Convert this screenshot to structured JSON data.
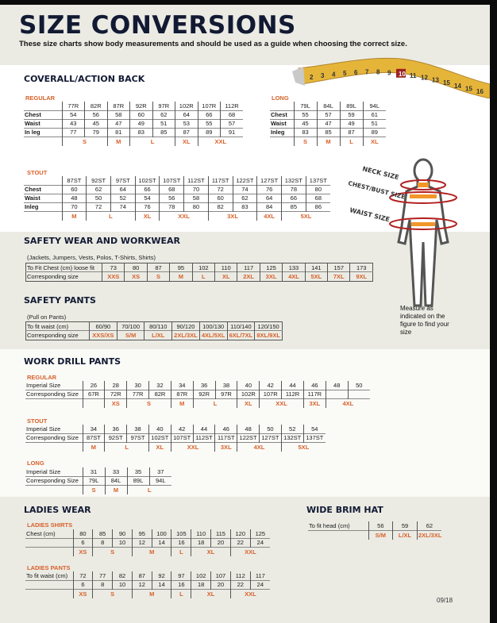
{
  "header": {
    "title": "SIZE CONVERSIONS",
    "subtitle": "These size charts show body measurements and should be used as a guide when choosing the correct size."
  },
  "tape": {
    "numbers": [
      "2",
      "3",
      "4",
      "5",
      "6",
      "7",
      "8",
      "9",
      "10",
      "11",
      "12",
      "13",
      "15",
      "14",
      "15",
      "16"
    ],
    "highlight": "10"
  },
  "colors": {
    "accent": "#d8612a",
    "navy": "#121a33",
    "beige": "#ebebe4",
    "arrow": "#b21f1f"
  },
  "coverall": {
    "title": "COVERALL/ACTION BACK",
    "regular": {
      "title": "REGULAR",
      "rows": [
        [
          "",
          "77R",
          "82R",
          "87R",
          "92R",
          "97R",
          "102R",
          "107R",
          "112R"
        ],
        [
          "Chest",
          "54",
          "56",
          "58",
          "60",
          "62",
          "64",
          "66",
          "68"
        ],
        [
          "Waist",
          "43",
          "45",
          "47",
          "49",
          "51",
          "53",
          "55",
          "57"
        ],
        [
          "In leg",
          "77",
          "79",
          "81",
          "83",
          "85",
          "87",
          "89",
          "91"
        ]
      ],
      "sizes": [
        {
          "s": "S",
          "span": 2
        },
        {
          "s": "M",
          "span": 1
        },
        {
          "s": "L",
          "span": 2
        },
        {
          "s": "XL",
          "span": 1
        },
        {
          "s": "XXL",
          "span": 2
        }
      ]
    },
    "long": {
      "title": "LONG",
      "rows": [
        [
          "",
          "79L",
          "84L",
          "89L",
          "94L"
        ],
        [
          "Chest",
          "55",
          "57",
          "59",
          "61"
        ],
        [
          "Waist",
          "45",
          "47",
          "49",
          "51"
        ],
        [
          "Inleg",
          "83",
          "85",
          "87",
          "89"
        ]
      ],
      "sizes": [
        {
          "s": "S",
          "span": 1
        },
        {
          "s": "M",
          "span": 1
        },
        {
          "s": "L",
          "span": 1
        },
        {
          "s": "XL",
          "span": 1
        }
      ]
    },
    "stout": {
      "title": "STOUT",
      "rows": [
        [
          "",
          "87ST",
          "92ST",
          "97ST",
          "102ST",
          "107ST",
          "112ST",
          "117ST",
          "122ST",
          "127ST",
          "132ST",
          "137ST"
        ],
        [
          "Chest",
          "60",
          "62",
          "64",
          "66",
          "68",
          "70",
          "72",
          "74",
          "76",
          "78",
          "80"
        ],
        [
          "Waist",
          "48",
          "50",
          "52",
          "54",
          "56",
          "58",
          "60",
          "62",
          "64",
          "66",
          "68"
        ],
        [
          "Inleg",
          "70",
          "72",
          "74",
          "76",
          "78",
          "80",
          "82",
          "83",
          "84",
          "85",
          "86"
        ]
      ],
      "sizes": [
        {
          "s": "M",
          "span": 1
        },
        {
          "s": "L",
          "span": 2
        },
        {
          "s": "XL",
          "span": 1
        },
        {
          "s": "XXL",
          "span": 2
        },
        {
          "s": "3XL",
          "span": 2
        },
        {
          "s": "4XL",
          "span": 1
        },
        {
          "s": "5XL",
          "span": 2
        }
      ]
    }
  },
  "figure": {
    "neck": "NECK SIZE",
    "chest": "CHEST/BUST SIZE",
    "waist": "WAIST SIZE",
    "note": "Measure as indicated on the figure to find your size"
  },
  "safety_wear": {
    "title": "SAFETY WEAR AND WORKWEAR",
    "note": "(Jackets, Jumpers, Vests, Polos, T-Shirts, Shirts)",
    "rows": [
      [
        "To Fit Chest (cm) loose fit",
        "73",
        "80",
        "87",
        "95",
        "102",
        "110",
        "117",
        "125",
        "133",
        "141",
        "157",
        "173"
      ]
    ],
    "sizes_label": "Corresponding size",
    "sizes": [
      {
        "s": "XXS",
        "span": 1
      },
      {
        "s": "XS",
        "span": 1
      },
      {
        "s": "S",
        "span": 1
      },
      {
        "s": "M",
        "span": 1
      },
      {
        "s": "L",
        "span": 1
      },
      {
        "s": "XL",
        "span": 1
      },
      {
        "s": "2XL",
        "span": 1
      },
      {
        "s": "3XL",
        "span": 1
      },
      {
        "s": "4XL",
        "span": 1
      },
      {
        "s": "5XL",
        "span": 1
      },
      {
        "s": "7XL",
        "span": 1
      },
      {
        "s": "9XL",
        "span": 1
      }
    ]
  },
  "safety_pants": {
    "title": "SAFETY PANTS",
    "note": "(Pull on Pants)",
    "rows": [
      [
        "To fit waist (cm)",
        "60/90",
        "70/100",
        "80/110",
        "90/120",
        "100/130",
        "110/140",
        "120/150"
      ]
    ],
    "sizes_label": "Corresponding size",
    "sizes": [
      {
        "s": "XXS/XS",
        "span": 1
      },
      {
        "s": "S/M",
        "span": 1
      },
      {
        "s": "L/XL",
        "span": 1
      },
      {
        "s": "2XL/3XL",
        "span": 1
      },
      {
        "s": "4XL/5XL",
        "span": 1
      },
      {
        "s": "6XL/7XL",
        "span": 1
      },
      {
        "s": "8XL/9XL",
        "span": 1
      }
    ]
  },
  "work_drill": {
    "title": "WORK DRILL PANTS",
    "regular": {
      "title": "REGULAR",
      "rows": [
        [
          "Imperial Size",
          "26",
          "28",
          "30",
          "32",
          "34",
          "36",
          "38",
          "40",
          "42",
          "44",
          "46",
          "48",
          "50"
        ],
        [
          "Corresponding Size",
          "67R",
          "72R",
          "77R",
          "82R",
          "87R",
          "92R",
          "97R",
          "102R",
          "107R",
          "112R",
          "117R",
          "",
          ""
        ]
      ],
      "sizes": [
        {
          "s": "",
          "span": 1
        },
        {
          "s": "XS",
          "span": 1
        },
        {
          "s": "S",
          "span": 2
        },
        {
          "s": "M",
          "span": 1
        },
        {
          "s": "L",
          "span": 2
        },
        {
          "s": "XL",
          "span": 1
        },
        {
          "s": "XXL",
          "span": 2
        },
        {
          "s": "3XL",
          "span": 1
        },
        {
          "s": "4XL",
          "span": 2
        }
      ]
    },
    "stout": {
      "title": "STOUT",
      "rows": [
        [
          "Imperial Size",
          "34",
          "36",
          "38",
          "40",
          "42",
          "44",
          "46",
          "48",
          "50",
          "52",
          "54"
        ],
        [
          "Corresponding Size",
          "87ST",
          "92ST",
          "97ST",
          "102ST",
          "107ST",
          "112ST",
          "117ST",
          "122ST",
          "127ST",
          "132ST",
          "137ST"
        ]
      ],
      "sizes": [
        {
          "s": "M",
          "span": 1
        },
        {
          "s": "L",
          "span": 2
        },
        {
          "s": "XL",
          "span": 1
        },
        {
          "s": "XXL",
          "span": 2
        },
        {
          "s": "3XL",
          "span": 1
        },
        {
          "s": "4XL",
          "span": 2
        },
        {
          "s": "5XL",
          "span": 2
        }
      ]
    },
    "long": {
      "title": "LONG",
      "rows": [
        [
          "Imperial Size",
          "31",
          "33",
          "35",
          "37"
        ],
        [
          "Corresponding Size",
          "79L",
          "84L",
          "89L",
          "94L"
        ]
      ],
      "sizes": [
        {
          "s": "S",
          "span": 1
        },
        {
          "s": "M",
          "span": 1
        },
        {
          "s": "L",
          "span": 2
        }
      ]
    }
  },
  "ladies": {
    "title": "LADIES WEAR",
    "shirts": {
      "title": "LADIES SHIRTS",
      "rows": [
        [
          "Chest (cm)",
          "80",
          "85",
          "90",
          "95",
          "100",
          "105",
          "110",
          "115",
          "120",
          "125"
        ],
        [
          "",
          "6",
          "8",
          "10",
          "12",
          "14",
          "16",
          "18",
          "20",
          "22",
          "24"
        ]
      ],
      "sizes": [
        {
          "s": "XS",
          "span": 1
        },
        {
          "s": "S",
          "span": 2
        },
        {
          "s": "M",
          "span": 2
        },
        {
          "s": "L",
          "span": 1
        },
        {
          "s": "XL",
          "span": 2
        },
        {
          "s": "XXL",
          "span": 2
        }
      ]
    },
    "pants": {
      "title": "LADIES PANTS",
      "rows": [
        [
          "To fit waist (cm)",
          "72",
          "77",
          "82",
          "87",
          "92",
          "97",
          "102",
          "107",
          "112",
          "117"
        ],
        [
          "",
          "6",
          "8",
          "10",
          "12",
          "14",
          "16",
          "18",
          "20",
          "22",
          "24"
        ]
      ],
      "sizes": [
        {
          "s": "XS",
          "span": 1
        },
        {
          "s": "S",
          "span": 2
        },
        {
          "s": "M",
          "span": 2
        },
        {
          "s": "L",
          "span": 1
        },
        {
          "s": "XL",
          "span": 2
        },
        {
          "s": "XXL",
          "span": 2
        }
      ]
    }
  },
  "hat": {
    "title": "WIDE BRIM HAT",
    "rows": [
      [
        "To fit head (cm)",
        "56",
        "59",
        "62"
      ]
    ],
    "sizes": [
      {
        "s": "S/M",
        "span": 1
      },
      {
        "s": "L/XL",
        "span": 1
      },
      {
        "s": "2XL/3XL",
        "span": 1
      }
    ]
  },
  "footer": {
    "code": "09/18"
  }
}
